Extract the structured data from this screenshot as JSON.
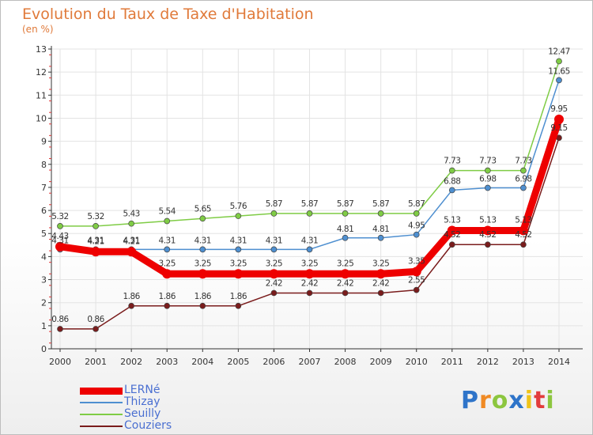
{
  "chart_data": {
    "type": "line",
    "title": "Evolution du Taux de Taxe d'Habitation",
    "ylabel": "(en %)",
    "xlabel": "",
    "x": [
      "2000",
      "2001",
      "2002",
      "2003",
      "2004",
      "2005",
      "2006",
      "2007",
      "2008",
      "2009",
      "2010",
      "2011",
      "2012",
      "2013",
      "2014"
    ],
    "ylim": [
      0,
      13
    ],
    "yticks": [
      "0",
      "1",
      "2",
      "3",
      "4",
      "5",
      "6",
      "7",
      "8",
      "9",
      "10",
      "11",
      "12",
      "13"
    ],
    "series": [
      {
        "name": "LERNé",
        "color": "#ee0000",
        "values": [
          4.43,
          4.21,
          4.21,
          3.25,
          3.25,
          3.25,
          3.25,
          3.25,
          3.25,
          3.25,
          3.35,
          5.13,
          5.13,
          5.13,
          9.95
        ],
        "labels": [
          "4.43",
          "4.21",
          "4.21",
          "3.25",
          "3.25",
          "3.25",
          "3.25",
          "3.25",
          "3.25",
          "3.25",
          "3.35",
          "5.13",
          "5.13",
          "5.13",
          "9.95"
        ]
      },
      {
        "name": "Thizay",
        "color": "#4e8fd0",
        "values": [
          4.31,
          4.31,
          4.31,
          4.31,
          4.31,
          4.31,
          4.31,
          4.31,
          4.81,
          4.81,
          4.95,
          6.88,
          6.98,
          6.98,
          11.65
        ],
        "labels": [
          "4.31",
          "4.31",
          "4.31",
          "4.31",
          "4.31",
          "4.31",
          "4.31",
          "4.31",
          "4.81",
          "4.81",
          "4.95",
          "6.88",
          "6.98",
          "6.98",
          "11.65"
        ]
      },
      {
        "name": "Seuilly",
        "color": "#7fcc45",
        "values": [
          5.32,
          5.32,
          5.43,
          5.54,
          5.65,
          5.76,
          5.87,
          5.87,
          5.87,
          5.87,
          5.87,
          7.73,
          7.73,
          7.73,
          12.47
        ],
        "labels": [
          "5.32",
          "5.32",
          "5.43",
          "5.54",
          "5.65",
          "5.76",
          "5.87",
          "5.87",
          "5.87",
          "5.87",
          "5.87",
          "7.73",
          "7.73",
          "7.73",
          "12.47"
        ]
      },
      {
        "name": "Couziers",
        "color": "#7a1c1c",
        "values": [
          0.86,
          0.86,
          1.86,
          1.86,
          1.86,
          1.86,
          2.42,
          2.42,
          2.42,
          2.42,
          2.55,
          4.52,
          4.52,
          4.52,
          9.15
        ],
        "labels": [
          "0.86",
          "0.86",
          "1.86",
          "1.86",
          "1.86",
          "1.86",
          "2.42",
          "2.42",
          "2.42",
          "2.42",
          "2.55",
          "4.52",
          "4.52",
          "4.52",
          "9.15"
        ]
      }
    ],
    "legend_position": "bottom-left"
  },
  "logo": {
    "letters": [
      "P",
      "r",
      "o",
      "x",
      "i",
      "t",
      "i"
    ],
    "colors": [
      "#2e74c9",
      "#f08a24",
      "#8cc63f",
      "#2e74c9",
      "#f0c419",
      "#e23c3c",
      "#8cc63f"
    ]
  }
}
